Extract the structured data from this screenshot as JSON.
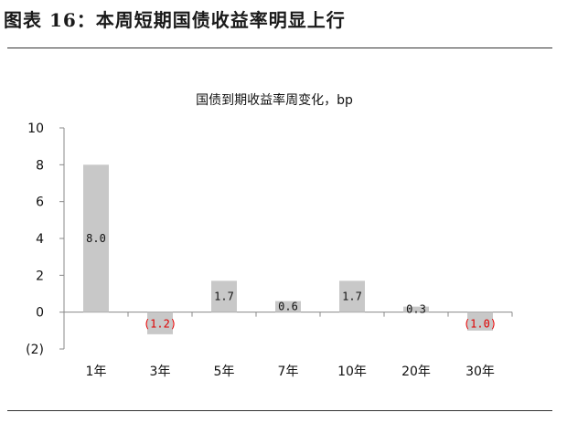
{
  "figure_title": "图表 16：本周短期国债收益率明显上行",
  "colors": {
    "bar": "#c8c8c8",
    "axis": "#888888",
    "positive_label": "#111111",
    "negative_label": "#e00000",
    "rule": "#333333"
  },
  "chart_data": {
    "type": "bar",
    "title": "国债到期收益率周变化，bp",
    "categories": [
      "1年",
      "3年",
      "5年",
      "7年",
      "10年",
      "20年",
      "30年"
    ],
    "values": [
      8.0,
      -1.2,
      1.7,
      0.6,
      1.7,
      0.3,
      -1.0
    ],
    "value_labels": [
      "8.0",
      "(1.2)",
      "1.7",
      "0.6",
      "1.7",
      "0.3",
      "(1.0)"
    ],
    "yticks": [
      10,
      8,
      6,
      4,
      2,
      0,
      -2
    ],
    "ytick_labels": [
      "10",
      "8",
      "6",
      "4",
      "2",
      "0",
      "(2)"
    ],
    "ylim": [
      -2,
      10
    ],
    "xlabel": "",
    "ylabel": "",
    "grid": false,
    "legend": "none"
  }
}
